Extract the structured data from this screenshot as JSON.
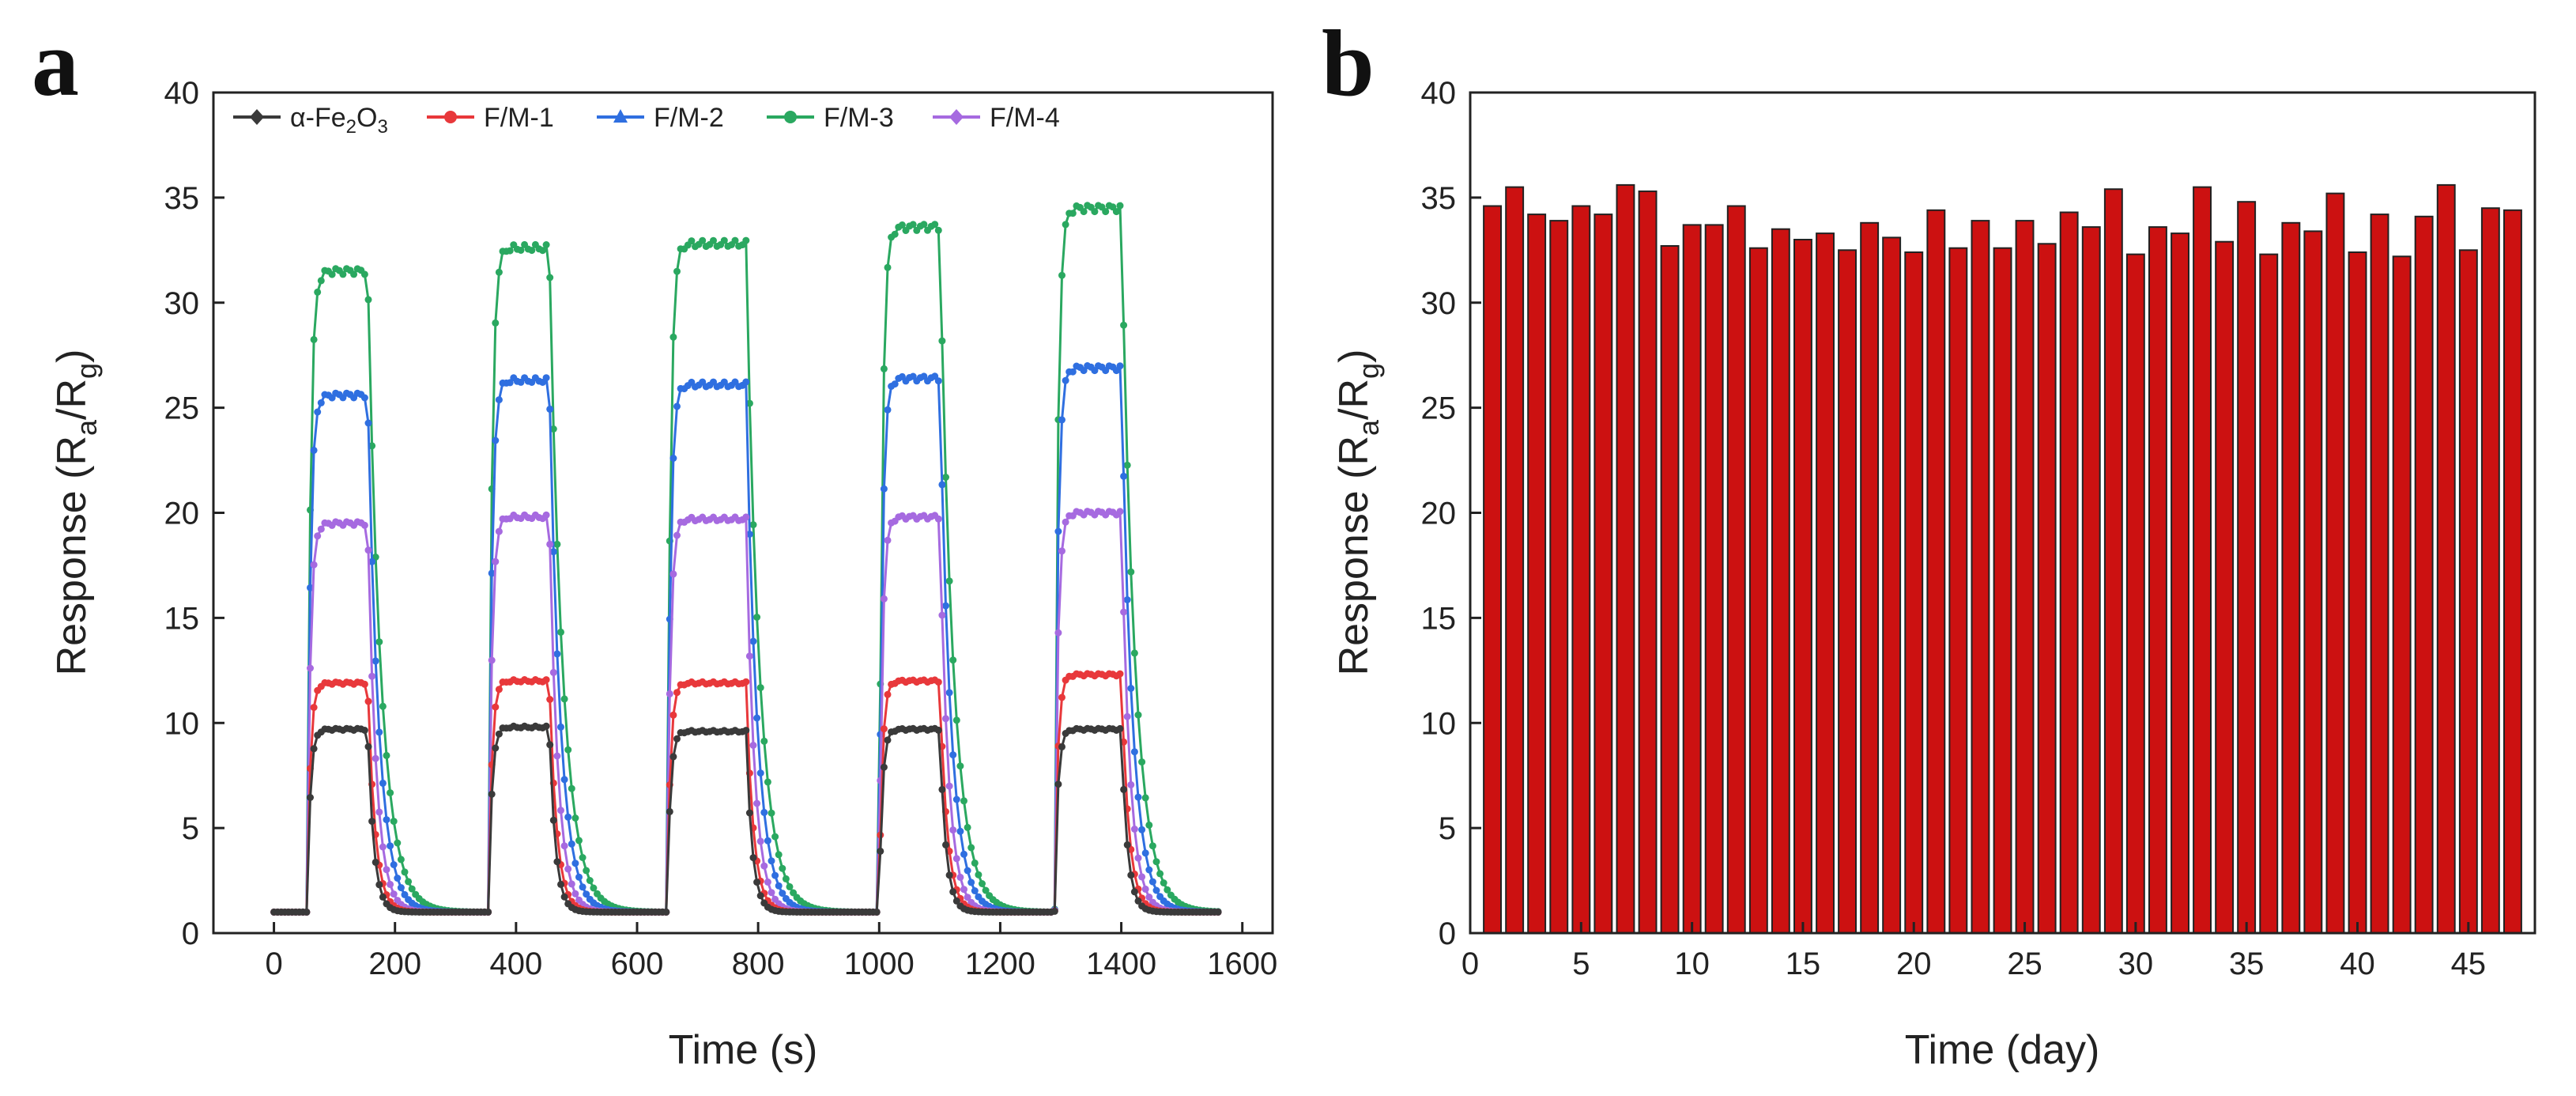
{
  "figure": {
    "panel_a_label": "a",
    "panel_b_label": "b",
    "legend_prefix": "α-Fe",
    "legend_sub1": "2",
    "legend_mid": "O",
    "legend_sub2": "3"
  },
  "chart_data": [
    {
      "type": "line",
      "panel": "a",
      "title": "",
      "xlabel": "Time (s)",
      "ylabel_main": "Response (R",
      "ylabel_sub_a": "a",
      "ylabel_mid": "/R",
      "ylabel_sub_g": "g",
      "ylabel_end": ")",
      "xlim": [
        -100,
        1650
      ],
      "ylim": [
        0,
        40
      ],
      "xticks": [
        0,
        200,
        400,
        600,
        800,
        1000,
        1200,
        1400,
        1600
      ],
      "yticks": [
        0,
        5,
        10,
        15,
        20,
        25,
        30,
        35,
        40
      ],
      "cycles": [
        {
          "on": 55,
          "off": 155
        },
        {
          "on": 355,
          "off": 455
        },
        {
          "on": 650,
          "off": 780
        },
        {
          "on": 1000,
          "off": 1100
        },
        {
          "on": 1290,
          "off": 1400
        }
      ],
      "x_end": 1560,
      "baseline": 1.0,
      "legend_position": "top",
      "series": [
        {
          "name": "α-Fe2O3",
          "label": "α-Fe2O3",
          "color": "#3a3a3a",
          "marker": "diamond",
          "plateaus": [
            9.7,
            9.8,
            9.6,
            9.7,
            9.7
          ],
          "recovery": 10
        },
        {
          "name": "F/M-1",
          "label": "F/M-1",
          "color": "#e8383b",
          "marker": "circle",
          "plateaus": [
            11.9,
            12.0,
            11.9,
            12.0,
            12.3
          ],
          "recovery": 12
        },
        {
          "name": "F/M-2",
          "label": "F/M-2",
          "color": "#2f6fe0",
          "marker": "triangle",
          "plateaus": [
            25.6,
            26.3,
            26.1,
            26.4,
            26.9
          ],
          "recovery": 18
        },
        {
          "name": "F/M-3",
          "label": "F/M-3",
          "color": "#2aa860",
          "marker": "circle",
          "plateaus": [
            31.5,
            32.6,
            32.8,
            33.6,
            34.5
          ],
          "recovery": 22
        },
        {
          "name": "F/M-4",
          "label": "F/M-4",
          "color": "#a66ae0",
          "marker": "diamond",
          "plateaus": [
            19.5,
            19.8,
            19.7,
            19.8,
            20.0
          ],
          "recovery": 14
        }
      ]
    },
    {
      "type": "bar",
      "panel": "b",
      "title": "",
      "xlabel": "Time (day)",
      "ylabel_main": "Response (R",
      "ylabel_sub_a": "a",
      "ylabel_mid": "/R",
      "ylabel_sub_g": "g",
      "ylabel_end": ")",
      "xlim": [
        0,
        48
      ],
      "ylim": [
        0,
        40
      ],
      "xticks": [
        0,
        5,
        10,
        15,
        20,
        25,
        30,
        35,
        40,
        45
      ],
      "yticks": [
        0,
        5,
        10,
        15,
        20,
        25,
        30,
        35,
        40
      ],
      "bar_color": "#cc1111",
      "categories": [
        1,
        2,
        3,
        4,
        5,
        6,
        7,
        8,
        9,
        10,
        11,
        12,
        13,
        14,
        15,
        16,
        17,
        18,
        19,
        20,
        21,
        22,
        23,
        24,
        25,
        26,
        27,
        28,
        29,
        30,
        31,
        32,
        33,
        34,
        35,
        36,
        37,
        38,
        39,
        40,
        41,
        42,
        43,
        44,
        45,
        46,
        47
      ],
      "values": [
        34.6,
        35.5,
        34.2,
        33.9,
        34.6,
        34.2,
        35.6,
        35.3,
        32.7,
        33.7,
        33.7,
        34.6,
        32.6,
        33.5,
        33.0,
        33.3,
        32.5,
        33.8,
        33.1,
        32.4,
        34.4,
        32.6,
        33.9,
        32.6,
        33.9,
        32.8,
        34.3,
        33.6,
        35.4,
        32.3,
        33.6,
        33.3,
        35.5,
        32.9,
        34.8,
        32.3,
        33.8,
        33.4,
        35.2,
        32.4,
        34.2,
        32.2,
        34.1,
        35.6,
        32.5,
        34.5,
        34.4
      ]
    }
  ]
}
